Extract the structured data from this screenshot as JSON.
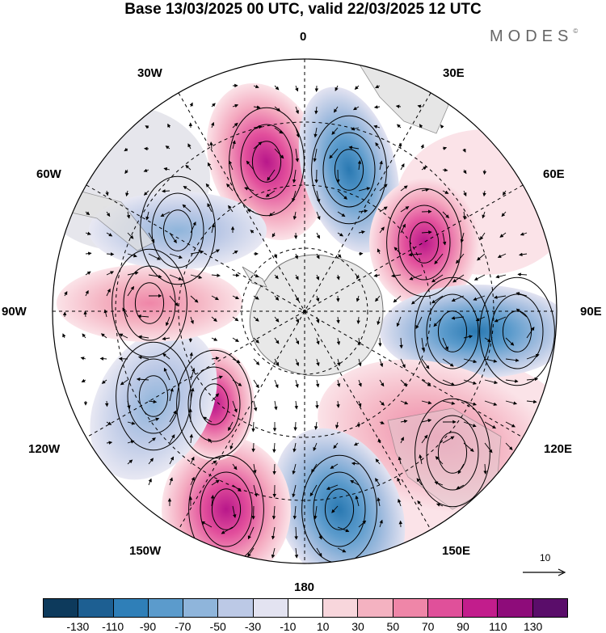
{
  "title": "Base 13/03/2025 00 UTC, valid 22/03/2025 12 UTC",
  "logo": "MODES",
  "logo_mark": "©",
  "map": {
    "projection": "south polar stereographic",
    "longitude_labels": {
      "top": "0",
      "top_right": "30E",
      "right_upper": "60E",
      "right": "90E",
      "right_lower": "120E",
      "bottom_right": "150E",
      "bottom": "180",
      "bottom_left": "150W",
      "left_lower": "120W",
      "left": "90W",
      "left_upper": "60W",
      "top_left": "30W"
    },
    "reference_vector": "10"
  },
  "colorbar": {
    "ticks": [
      "-130",
      "-110",
      "-90",
      "-70",
      "-50",
      "-30",
      "-10",
      "10",
      "30",
      "50",
      "70",
      "90",
      "110",
      "130"
    ],
    "colors": [
      "#0d3a5c",
      "#1d5f92",
      "#2f7fb8",
      "#5b9bcc",
      "#8fb5db",
      "#bcc9e6",
      "#e3e3f1",
      "#ffffff",
      "#f8d6dc",
      "#f4b2c1",
      "#ef86a8",
      "#e0509a",
      "#c21d8c",
      "#8e0c7a",
      "#5a0d6a"
    ]
  }
}
